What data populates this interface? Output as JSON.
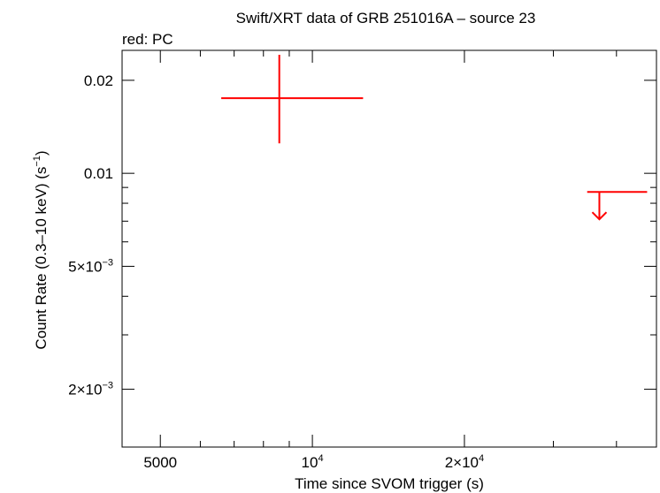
{
  "chart_data": {
    "type": "scatter",
    "title": "Swift/XRT data of GRB 251016A – source 23",
    "subtitle": "red: PC",
    "xlabel": "Time since SVOM trigger (s)",
    "ylabel_main": "Count Rate (0.3–10 keV) (s",
    "ylabel_sup": "−1",
    "ylabel_tail": ")",
    "x_scale": "log",
    "y_scale": "log",
    "xlim": [
      4200,
      48000
    ],
    "ylim": [
      0.0013,
      0.025
    ],
    "x_ticks": [
      {
        "value": 5000,
        "base": "5000",
        "sup": ""
      },
      {
        "value": 10000,
        "base": "10",
        "sup": "4"
      },
      {
        "value": 20000,
        "base": "2×10",
        "sup": "4"
      }
    ],
    "y_ticks": [
      {
        "value": 0.02,
        "base": "0.02",
        "sup": ""
      },
      {
        "value": 0.01,
        "base": "0.01",
        "sup": ""
      },
      {
        "value": 0.005,
        "base": "5×10",
        "sup": "−3"
      },
      {
        "value": 0.002,
        "base": "2×10",
        "sup": "−3"
      }
    ],
    "series": [
      {
        "mode": "PC",
        "color": "#ff0000",
        "points": [
          {
            "x": 8600,
            "y": 0.0175,
            "xerr": [
              6600,
              12600
            ],
            "yerr": [
              0.0125,
              0.0242
            ]
          }
        ],
        "upper_limits": [
          {
            "x": 37000,
            "y": 0.0087,
            "xerr": [
              35000,
              46000
            ],
            "arrow_to": 0.0071
          }
        ]
      }
    ]
  }
}
